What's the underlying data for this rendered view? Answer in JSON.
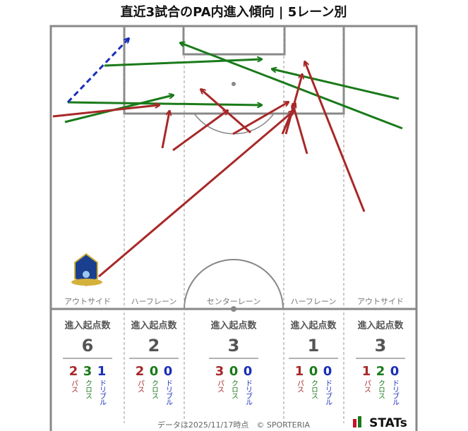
{
  "title": "直近3試合のPA内進入傾向 | 5レーン別",
  "labels": {
    "header": "進入起点数",
    "pass": "パス",
    "cross": "クロス",
    "dribble": "ドリブル"
  },
  "lanes": [
    {
      "name": "アウトサイド",
      "total": 6,
      "pass": 2,
      "cross": 3,
      "dribble": 1
    },
    {
      "name": "ハーフレーン",
      "total": 2,
      "pass": 2,
      "cross": 0,
      "dribble": 0
    },
    {
      "name": "センターレーン",
      "total": 3,
      "pass": 3,
      "cross": 0,
      "dribble": 0
    },
    {
      "name": "ハーフレーン",
      "total": 1,
      "pass": 1,
      "cross": 0,
      "dribble": 0
    },
    {
      "name": "アウトサイド",
      "total": 3,
      "pass": 1,
      "cross": 2,
      "dribble": 0
    }
  ],
  "footer": "データは2025/11/17時点　© SPORTERIA",
  "brand": "STATs"
}
